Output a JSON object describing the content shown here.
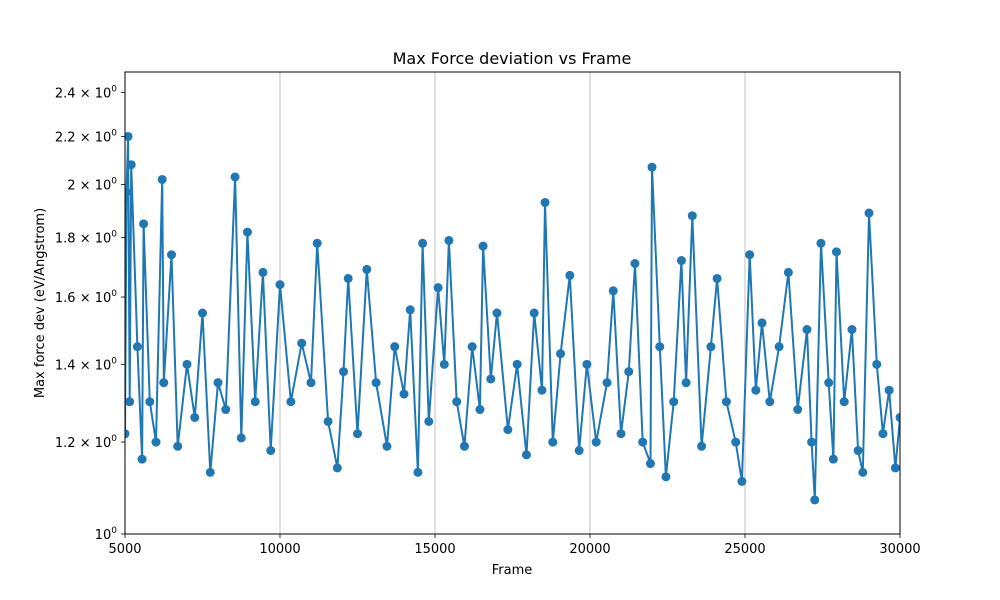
{
  "chart_data": {
    "type": "line",
    "title": "Max Force deviation vs Frame",
    "xlabel": "Frame",
    "ylabel": "Max force dev (eV/Angstrom)",
    "xlim": [
      5000,
      30000
    ],
    "ylim": [
      1.0,
      2.5
    ],
    "yscale": "log",
    "grid": "x-major",
    "color": "#1f77b4",
    "marker": "circle",
    "x_ticks": [
      {
        "value": 5000,
        "label": "5000"
      },
      {
        "value": 10000,
        "label": "10000"
      },
      {
        "value": 15000,
        "label": "15000"
      },
      {
        "value": 20000,
        "label": "20000"
      },
      {
        "value": 25000,
        "label": "25000"
      },
      {
        "value": 30000,
        "label": "30000"
      }
    ],
    "y_ticks": [
      {
        "value": 1.0,
        "base": "10",
        "exp": "0"
      },
      {
        "value": 1.2,
        "base": "1.2 × 10",
        "exp": "0"
      },
      {
        "value": 1.4,
        "base": "1.4 × 10",
        "exp": "0"
      },
      {
        "value": 1.6,
        "base": "1.6 × 10",
        "exp": "0"
      },
      {
        "value": 1.8,
        "base": "1.8 × 10",
        "exp": "0"
      },
      {
        "value": 2.0,
        "base": "2 × 10",
        "exp": "0"
      },
      {
        "value": 2.2,
        "base": "2.2 × 10",
        "exp": "0"
      },
      {
        "value": 2.4,
        "base": "2.4 × 10",
        "exp": "0"
      }
    ],
    "series": [
      {
        "x": [
          5000,
          5050,
          5100,
          5150,
          5200,
          5400,
          5550,
          5600,
          5800,
          6000,
          6200,
          6250,
          6500,
          6700,
          7000,
          7250,
          7500,
          7750,
          8000,
          8250,
          8550,
          8750,
          8950,
          9200,
          9450,
          9700,
          10000,
          10350,
          10700,
          11000,
          11200,
          11550,
          11850,
          12050,
          12200,
          12500,
          12800,
          13100,
          13450,
          13700,
          14000,
          14200,
          14450,
          14600,
          14800,
          15100,
          15300,
          15450,
          15700,
          15950,
          16200,
          16450,
          16550,
          16800,
          17000,
          17350,
          17650,
          17950,
          18200,
          18450,
          18550,
          18800,
          19050,
          19350,
          19650,
          19900,
          20200,
          20550,
          20750,
          21000,
          21250,
          21450,
          21700,
          21950,
          22000,
          22250,
          22450,
          22700,
          22950,
          23100,
          23300,
          23600,
          23900,
          24100,
          24400,
          24700,
          24900,
          25150,
          25350,
          25550,
          25800,
          26100,
          26400,
          26700,
          27000,
          27150,
          27250,
          27450,
          27700,
          27850,
          27950,
          28200,
          28450,
          28650,
          28800,
          29000,
          29250,
          29450,
          29650,
          29850,
          30000
        ],
        "y": [
          1.22,
          1.97,
          2.2,
          1.3,
          2.08,
          1.45,
          1.16,
          1.85,
          1.3,
          1.2,
          2.02,
          1.35,
          1.74,
          1.19,
          1.4,
          1.26,
          1.55,
          1.13,
          1.35,
          1.28,
          2.03,
          1.21,
          1.82,
          1.3,
          1.68,
          1.18,
          1.64,
          1.3,
          1.46,
          1.35,
          1.78,
          1.25,
          1.14,
          1.38,
          1.66,
          1.22,
          1.69,
          1.35,
          1.19,
          1.45,
          1.32,
          1.56,
          1.13,
          1.78,
          1.25,
          1.63,
          1.4,
          1.79,
          1.3,
          1.19,
          1.45,
          1.28,
          1.77,
          1.36,
          1.55,
          1.23,
          1.4,
          1.17,
          1.55,
          1.33,
          1.93,
          1.2,
          1.43,
          1.67,
          1.18,
          1.4,
          1.2,
          1.35,
          1.62,
          1.22,
          1.38,
          1.71,
          1.2,
          1.15,
          2.07,
          1.45,
          1.12,
          1.3,
          1.72,
          1.35,
          1.88,
          1.19,
          1.45,
          1.66,
          1.3,
          1.2,
          1.11,
          1.74,
          1.33,
          1.52,
          1.3,
          1.45,
          1.68,
          1.28,
          1.5,
          1.2,
          1.07,
          1.78,
          1.35,
          1.16,
          1.75,
          1.3,
          1.5,
          1.18,
          1.13,
          1.89,
          1.4,
          1.22,
          1.33,
          1.14,
          1.26
        ]
      }
    ]
  }
}
